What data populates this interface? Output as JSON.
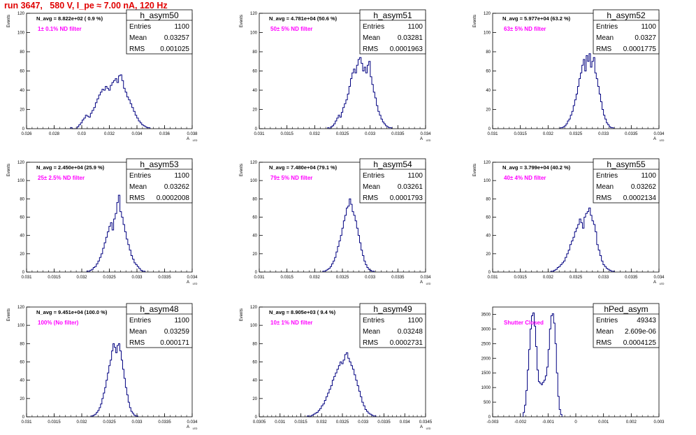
{
  "page": {
    "title": "run 3647,   580 V, I_pe ≈ 7.00 nA, 120 Hz"
  },
  "style": {
    "line": "#000080",
    "note": "#ff00ff",
    "title": "#e00000",
    "axis": "#000000"
  },
  "chart_data": [
    {
      "type": "bar",
      "name": "h_asym50",
      "stats": [
        [
          "Entries",
          "1100"
        ],
        [
          "Mean",
          "0.03257"
        ],
        [
          "RMS",
          "0.001025"
        ]
      ],
      "navg": "N_avg = 8.822e+02 ( 0.9 %)",
      "note": "1± 0.1% ND filter",
      "xlim": [
        0.026,
        0.039
      ],
      "ylim": [
        0,
        120
      ],
      "xticks": [
        "0.026",
        "0.028",
        "0.03",
        "0.032",
        "0.034",
        "0.036",
        "0.038"
      ],
      "yticks": [
        "0",
        "20",
        "40",
        "60",
        "80",
        "100",
        "120"
      ],
      "ylabel": "Events",
      "xlabel": "A",
      "xlabel_sub": "LED",
      "x_center": 0.03257,
      "bin_width": 0.00013,
      "values": [
        1,
        0,
        0,
        0,
        2,
        4,
        6,
        9,
        11,
        14,
        13,
        12,
        16,
        19,
        22,
        27,
        31,
        35,
        38,
        41,
        40,
        44,
        42,
        40,
        45,
        48,
        50,
        52,
        48,
        55,
        56,
        50,
        42,
        38,
        33,
        30,
        26,
        22,
        18,
        14,
        11,
        8,
        6,
        4,
        3,
        2,
        1,
        1
      ]
    },
    {
      "type": "bar",
      "name": "h_asym51",
      "stats": [
        [
          "Entries",
          "1100"
        ],
        [
          "Mean",
          "0.03281"
        ],
        [
          "RMS",
          "0.0001963"
        ]
      ],
      "navg": "N_avg = 4.781e+04 (50.6 %)",
      "note": "50± 5% ND filter",
      "xlim": [
        0.031,
        0.034
      ],
      "ylim": [
        0,
        120
      ],
      "xticks": [
        "0.031",
        "0.0315",
        "0.032",
        "0.0325",
        "0.033",
        "0.0335",
        "0.034"
      ],
      "yticks": [
        "0",
        "20",
        "40",
        "60",
        "80",
        "100",
        "120"
      ],
      "ylabel": "Events",
      "xlabel": "A",
      "xlabel_sub": "LED",
      "x_center": 0.03281,
      "bin_width": 2.75e-05,
      "values": [
        1,
        0,
        2,
        3,
        5,
        8,
        11,
        14,
        12,
        17,
        22,
        26,
        30,
        36,
        44,
        52,
        58,
        62,
        58,
        66,
        72,
        74,
        68,
        60,
        64,
        58,
        66,
        70,
        54,
        46,
        38,
        32,
        24,
        18,
        14,
        10,
        7,
        5,
        3,
        2,
        1,
        1
      ]
    },
    {
      "type": "bar",
      "name": "h_asym52",
      "stats": [
        [
          "Entries",
          "1100"
        ],
        [
          "Mean",
          "0.0327"
        ],
        [
          "RMS",
          "0.0001775"
        ]
      ],
      "navg": "N_avg = 5.977e+04 (63.2 %)",
      "note": "63± 5% ND filter",
      "xlim": [
        0.031,
        0.034
      ],
      "ylim": [
        0,
        120
      ],
      "xticks": [
        "0.031",
        "0.0315",
        "0.032",
        "0.0325",
        "0.033",
        "0.0335",
        "0.034"
      ],
      "yticks": [
        "0",
        "20",
        "40",
        "60",
        "80",
        "100",
        "120"
      ],
      "ylabel": "Events",
      "xlabel": "A",
      "xlabel_sub": "LED",
      "x_center": 0.0327,
      "bin_width": 2.6e-05,
      "values": [
        1,
        1,
        2,
        3,
        5,
        8,
        10,
        14,
        18,
        24,
        30,
        36,
        44,
        52,
        58,
        66,
        72,
        60,
        76,
        70,
        78,
        64,
        70,
        74,
        58,
        52,
        44,
        36,
        28,
        20,
        14,
        10,
        6,
        4,
        2,
        1,
        1
      ]
    },
    {
      "type": "bar",
      "name": "h_asym53",
      "stats": [
        [
          "Entries",
          "1100"
        ],
        [
          "Mean",
          "0.03262"
        ],
        [
          "RMS",
          "0.0002008"
        ]
      ],
      "navg": "N_avg = 2.450e+04 (25.9 %)",
      "note": "25± 2.5% ND filter",
      "xlim": [
        0.031,
        0.034
      ],
      "ylim": [
        0,
        120
      ],
      "xticks": [
        "0.031",
        "0.0315",
        "0.032",
        "0.0325",
        "0.033",
        "0.0335",
        "0.034"
      ],
      "yticks": [
        "0",
        "20",
        "40",
        "60",
        "80",
        "100",
        "120"
      ],
      "ylabel": "Events",
      "xlabel": "A",
      "xlabel_sub": "LED",
      "x_center": 0.03262,
      "bin_width": 2.85e-05,
      "values": [
        1,
        1,
        2,
        3,
        5,
        6,
        9,
        12,
        16,
        20,
        26,
        32,
        38,
        44,
        50,
        54,
        46,
        58,
        64,
        76,
        84,
        66,
        60,
        52,
        44,
        36,
        30,
        24,
        18,
        14,
        10,
        8,
        6,
        4,
        2,
        1,
        1
      ]
    },
    {
      "type": "bar",
      "name": "h_asym54",
      "stats": [
        [
          "Entries",
          "1100"
        ],
        [
          "Mean",
          "0.03261"
        ],
        [
          "RMS",
          "0.0001793"
        ]
      ],
      "navg": "N_avg = 7.480e+04 (79.1 %)",
      "note": "79± 5% ND filter",
      "xlim": [
        0.031,
        0.034
      ],
      "ylim": [
        0,
        120
      ],
      "xticks": [
        "0.031",
        "0.0315",
        "0.032",
        "0.0325",
        "0.033",
        "0.0335",
        "0.034"
      ],
      "yticks": [
        "0",
        "20",
        "40",
        "60",
        "80",
        "100",
        "120"
      ],
      "ylabel": "Events",
      "xlabel": "A",
      "xlabel_sub": "LED",
      "x_center": 0.03261,
      "bin_width": 2.65e-05,
      "values": [
        1,
        1,
        2,
        3,
        4,
        6,
        9,
        12,
        16,
        22,
        28,
        34,
        40,
        48,
        56,
        62,
        70,
        72,
        80,
        74,
        66,
        62,
        56,
        48,
        40,
        32,
        24,
        18,
        12,
        8,
        5,
        3,
        2,
        1,
        1
      ]
    },
    {
      "type": "bar",
      "name": "h_asym55",
      "stats": [
        [
          "Entries",
          "1100"
        ],
        [
          "Mean",
          "0.03262"
        ],
        [
          "RMS",
          "0.0002134"
        ]
      ],
      "navg": "N_avg = 3.799e+04 (40.2 %)",
      "note": "40± 4% ND filter",
      "xlim": [
        0.031,
        0.034
      ],
      "ylim": [
        0,
        120
      ],
      "xticks": [
        "0.031",
        "0.0315",
        "0.032",
        "0.0325",
        "0.033",
        "0.0335",
        "0.034"
      ],
      "yticks": [
        "0",
        "20",
        "40",
        "60",
        "80",
        "100",
        "120"
      ],
      "ylabel": "Events",
      "xlabel": "A",
      "xlabel_sub": "LED",
      "x_center": 0.03262,
      "bin_width": 2.85e-05,
      "values": [
        1,
        1,
        2,
        3,
        5,
        6,
        8,
        10,
        12,
        16,
        20,
        24,
        30,
        34,
        38,
        44,
        48,
        52,
        58,
        54,
        48,
        60,
        64,
        66,
        70,
        62,
        56,
        52,
        44,
        30,
        24,
        18,
        12,
        8,
        6,
        4,
        3,
        2,
        1,
        1
      ]
    },
    {
      "type": "bar",
      "name": "h_asym48",
      "stats": [
        [
          "Entries",
          "1100"
        ],
        [
          "Mean",
          "0.03259"
        ],
        [
          "RMS",
          "0.000171"
        ]
      ],
      "navg": "N_avg = 9.451e+04 (100.0 %)",
      "note": "100% (No filter)",
      "xlim": [
        0.031,
        0.034
      ],
      "ylim": [
        0,
        120
      ],
      "xticks": [
        "0.031",
        "0.0315",
        "0.032",
        "0.0325",
        "0.033",
        "0.0335",
        "0.034"
      ],
      "yticks": [
        "0",
        "20",
        "40",
        "60",
        "80",
        "100",
        "120"
      ],
      "ylabel": "Events",
      "xlabel": "A",
      "xlabel_sub": "LED",
      "x_center": 0.03259,
      "bin_width": 2.5e-05,
      "values": [
        1,
        1,
        2,
        3,
        5,
        7,
        10,
        14,
        20,
        26,
        32,
        40,
        48,
        56,
        62,
        72,
        80,
        76,
        70,
        78,
        80,
        72,
        62,
        52,
        42,
        32,
        24,
        16,
        10,
        6,
        4,
        2,
        1,
        1
      ]
    },
    {
      "type": "bar",
      "name": "h_asym49",
      "stats": [
        [
          "Entries",
          "1100"
        ],
        [
          "Mean",
          "0.03248"
        ],
        [
          "RMS",
          "0.0002731"
        ]
      ],
      "navg": "N_avg = 8.905e+03 ( 9.4 %)",
      "note": "10± 1% ND filter",
      "xlim": [
        0.0305,
        0.0345
      ],
      "ylim": [
        0,
        120
      ],
      "xticks": [
        "0.0305",
        "0.031",
        "0.0315",
        "0.032",
        "0.0325",
        "0.033",
        "0.0335",
        "0.034",
        "0.0345"
      ],
      "yticks": [
        "0",
        "20",
        "40",
        "60",
        "80",
        "100",
        "120"
      ],
      "ylabel": "Events",
      "xlabel": "A",
      "xlabel_sub": "LED",
      "x_center": 0.03248,
      "bin_width": 3.75e-05,
      "values": [
        1,
        0,
        1,
        2,
        3,
        4,
        5,
        7,
        9,
        12,
        14,
        18,
        22,
        26,
        30,
        34,
        40,
        44,
        48,
        52,
        56,
        60,
        58,
        62,
        68,
        70,
        64,
        60,
        56,
        52,
        46,
        40,
        34,
        28,
        22,
        16,
        12,
        8,
        6,
        4,
        3,
        2,
        1,
        1
      ]
    },
    {
      "type": "bar",
      "name": "hPed_asym",
      "stats": [
        [
          "Entries",
          "49343"
        ],
        [
          "Mean",
          "2.609e-06"
        ],
        [
          "RMS",
          "0.0004125"
        ]
      ],
      "navg": "",
      "note": "Shutter Closed",
      "xlim": [
        -0.003,
        0.003
      ],
      "ylim": [
        0,
        3750
      ],
      "xticks": [
        "-0.003",
        "-0.002",
        "-0.001",
        "0",
        "0.001",
        "0.002",
        "0.003"
      ],
      "yticks": [
        "0",
        "500",
        "1000",
        "1500",
        "2000",
        "2500",
        "3000",
        "3500"
      ],
      "ylabel": "",
      "xlabel": "",
      "xlabel_sub": "",
      "x_center": -0.0012,
      "bin_width": 5e-05,
      "values": [
        150,
        400,
        900,
        1600,
        2300,
        3000,
        3450,
        3550,
        3100,
        2400,
        1600,
        1200,
        1150,
        1100,
        1180,
        1250,
        1400,
        1700,
        2300,
        3000,
        3450,
        3520,
        3200,
        2500,
        1500,
        700,
        250,
        80
      ]
    }
  ]
}
